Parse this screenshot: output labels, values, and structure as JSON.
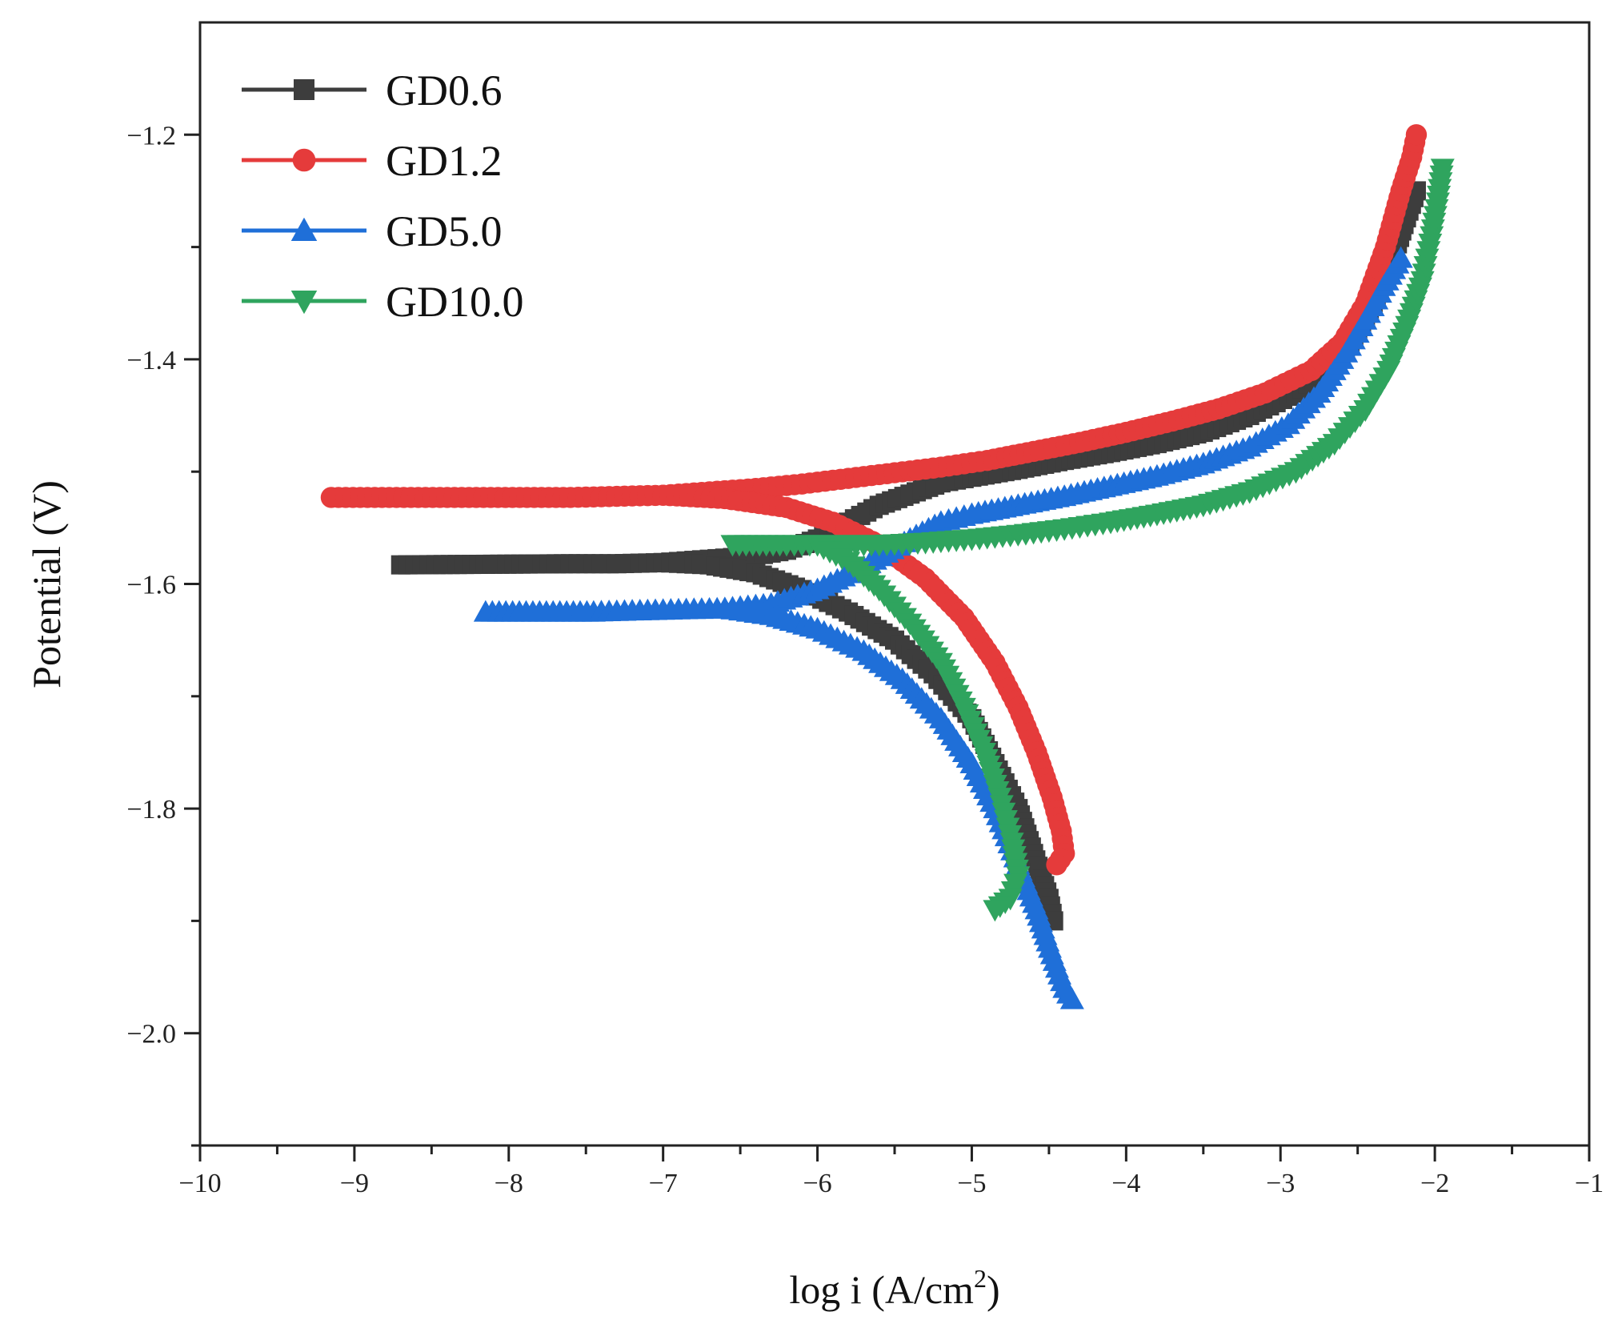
{
  "chart_data": {
    "type": "line",
    "title": "",
    "xlabel": "log i (A/cm",
    "xlabel_sup": "2",
    "xlabel_close": ")",
    "ylabel": "Potential (V)",
    "xlim": [
      -10,
      -1
    ],
    "ylim": [
      -2.1,
      -1.1
    ],
    "x_ticks": [
      -10,
      -9,
      -8,
      -7,
      -6,
      -5,
      -4,
      -3,
      -2,
      -1
    ],
    "x_tick_labels": [
      "−10",
      "−9",
      "−8",
      "−7",
      "−6",
      "−5",
      "−4",
      "−3",
      "−2",
      "−1"
    ],
    "y_ticks": [
      -2.0,
      -1.8,
      -1.6,
      -1.4,
      -1.2
    ],
    "y_tick_labels": [
      "−2.0",
      "−1.8",
      "−1.6",
      "−1.4",
      "−1.2"
    ],
    "grid": false,
    "legend_position": "top-left",
    "series": [
      {
        "name": "GD0.6",
        "color": "#3d3d3d",
        "marker": "square",
        "points": [
          [
            -8.7,
            -1.583
          ],
          [
            -7.6,
            -1.582
          ],
          [
            -7.3,
            -1.582
          ],
          [
            -7.0,
            -1.581
          ],
          [
            -6.7,
            -1.578
          ],
          [
            -6.4,
            -1.575
          ],
          [
            -6.2,
            -1.57
          ],
          [
            -6.0,
            -1.56
          ],
          [
            -5.8,
            -1.545
          ],
          [
            -5.6,
            -1.53
          ],
          [
            -5.4,
            -1.52
          ],
          [
            -5.2,
            -1.51
          ],
          [
            -5.0,
            -1.505
          ],
          [
            -4.7,
            -1.498
          ],
          [
            -4.4,
            -1.49
          ],
          [
            -4.1,
            -1.483
          ],
          [
            -3.8,
            -1.475
          ],
          [
            -3.5,
            -1.465
          ],
          [
            -3.2,
            -1.45
          ],
          [
            -2.9,
            -1.43
          ],
          [
            -2.7,
            -1.41
          ],
          [
            -2.55,
            -1.385
          ],
          [
            -2.4,
            -1.35
          ],
          [
            -2.3,
            -1.32
          ],
          [
            -2.2,
            -1.28
          ],
          [
            -2.12,
            -1.25
          ]
        ],
        "cathodic": [
          [
            -7.0,
            -1.581
          ],
          [
            -6.7,
            -1.583
          ],
          [
            -6.4,
            -1.59
          ],
          [
            -6.1,
            -1.605
          ],
          [
            -5.8,
            -1.625
          ],
          [
            -5.5,
            -1.65
          ],
          [
            -5.25,
            -1.68
          ],
          [
            -5.0,
            -1.72
          ],
          [
            -4.85,
            -1.76
          ],
          [
            -4.7,
            -1.8
          ],
          [
            -4.6,
            -1.84
          ],
          [
            -4.5,
            -1.88
          ],
          [
            -4.47,
            -1.9
          ]
        ]
      },
      {
        "name": "GD1.2",
        "color": "#e53b3b",
        "marker": "circle",
        "points": [
          [
            -9.15,
            -1.523
          ],
          [
            -7.6,
            -1.523
          ],
          [
            -7.3,
            -1.522
          ],
          [
            -7.0,
            -1.521
          ],
          [
            -6.7,
            -1.518
          ],
          [
            -6.4,
            -1.515
          ],
          [
            -6.1,
            -1.511
          ],
          [
            -5.8,
            -1.506
          ],
          [
            -5.5,
            -1.501
          ],
          [
            -5.2,
            -1.496
          ],
          [
            -4.9,
            -1.49
          ],
          [
            -4.6,
            -1.482
          ],
          [
            -4.3,
            -1.474
          ],
          [
            -4.0,
            -1.465
          ],
          [
            -3.7,
            -1.455
          ],
          [
            -3.4,
            -1.444
          ],
          [
            -3.1,
            -1.43
          ],
          [
            -2.8,
            -1.41
          ],
          [
            -2.6,
            -1.385
          ],
          [
            -2.45,
            -1.35
          ],
          [
            -2.32,
            -1.3
          ],
          [
            -2.22,
            -1.25
          ],
          [
            -2.15,
            -1.22
          ],
          [
            -2.12,
            -1.2
          ]
        ],
        "cathodic": [
          [
            -7.0,
            -1.521
          ],
          [
            -6.6,
            -1.524
          ],
          [
            -6.2,
            -1.532
          ],
          [
            -5.9,
            -1.545
          ],
          [
            -5.6,
            -1.565
          ],
          [
            -5.3,
            -1.595
          ],
          [
            -5.05,
            -1.63
          ],
          [
            -4.85,
            -1.67
          ],
          [
            -4.7,
            -1.71
          ],
          [
            -4.58,
            -1.75
          ],
          [
            -4.48,
            -1.79
          ],
          [
            -4.42,
            -1.82
          ],
          [
            -4.4,
            -1.84
          ],
          [
            -4.45,
            -1.85
          ]
        ]
      },
      {
        "name": "GD5.0",
        "color": "#1f6fd8",
        "marker": "triangle-up",
        "points": [
          [
            -8.15,
            -1.625
          ],
          [
            -7.8,
            -1.625
          ],
          [
            -7.45,
            -1.625
          ],
          [
            -7.2,
            -1.624
          ],
          [
            -6.9,
            -1.623
          ],
          [
            -6.6,
            -1.622
          ],
          [
            -6.3,
            -1.618
          ],
          [
            -6.0,
            -1.605
          ],
          [
            -5.7,
            -1.585
          ],
          [
            -5.4,
            -1.56
          ],
          [
            -5.2,
            -1.545
          ],
          [
            -5.0,
            -1.538
          ],
          [
            -4.7,
            -1.53
          ],
          [
            -4.4,
            -1.522
          ],
          [
            -4.1,
            -1.513
          ],
          [
            -3.8,
            -1.504
          ],
          [
            -3.5,
            -1.493
          ],
          [
            -3.2,
            -1.478
          ],
          [
            -2.95,
            -1.458
          ],
          [
            -2.75,
            -1.43
          ],
          [
            -2.6,
            -1.4
          ],
          [
            -2.45,
            -1.365
          ],
          [
            -2.33,
            -1.335
          ],
          [
            -2.22,
            -1.31
          ]
        ],
        "cathodic": [
          [
            -6.6,
            -1.622
          ],
          [
            -6.3,
            -1.628
          ],
          [
            -6.0,
            -1.64
          ],
          [
            -5.7,
            -1.66
          ],
          [
            -5.45,
            -1.685
          ],
          [
            -5.2,
            -1.72
          ],
          [
            -5.0,
            -1.76
          ],
          [
            -4.85,
            -1.8
          ],
          [
            -4.7,
            -1.85
          ],
          [
            -4.58,
            -1.89
          ],
          [
            -4.48,
            -1.93
          ],
          [
            -4.4,
            -1.96
          ],
          [
            -4.35,
            -1.97
          ]
        ]
      },
      {
        "name": "GD10.0",
        "color": "#2fa45e",
        "marker": "triangle-down",
        "points": [
          [
            -6.55,
            -1.565
          ],
          [
            -6.2,
            -1.565
          ],
          [
            -5.9,
            -1.565
          ],
          [
            -5.6,
            -1.565
          ],
          [
            -5.3,
            -1.563
          ],
          [
            -5.0,
            -1.56
          ],
          [
            -4.7,
            -1.556
          ],
          [
            -4.4,
            -1.551
          ],
          [
            -4.1,
            -1.545
          ],
          [
            -3.8,
            -1.538
          ],
          [
            -3.5,
            -1.53
          ],
          [
            -3.2,
            -1.518
          ],
          [
            -2.9,
            -1.5
          ],
          [
            -2.65,
            -1.475
          ],
          [
            -2.45,
            -1.445
          ],
          [
            -2.3,
            -1.41
          ],
          [
            -2.18,
            -1.37
          ],
          [
            -2.08,
            -1.33
          ],
          [
            -2.02,
            -1.29
          ],
          [
            -1.98,
            -1.26
          ],
          [
            -1.95,
            -1.23
          ]
        ],
        "cathodic": [
          [
            -6.0,
            -1.565
          ],
          [
            -5.8,
            -1.58
          ],
          [
            -5.6,
            -1.605
          ],
          [
            -5.4,
            -1.635
          ],
          [
            -5.2,
            -1.67
          ],
          [
            -5.05,
            -1.71
          ],
          [
            -4.92,
            -1.75
          ],
          [
            -4.82,
            -1.79
          ],
          [
            -4.74,
            -1.83
          ],
          [
            -4.7,
            -1.86
          ],
          [
            -4.75,
            -1.88
          ],
          [
            -4.85,
            -1.89
          ]
        ]
      }
    ]
  }
}
